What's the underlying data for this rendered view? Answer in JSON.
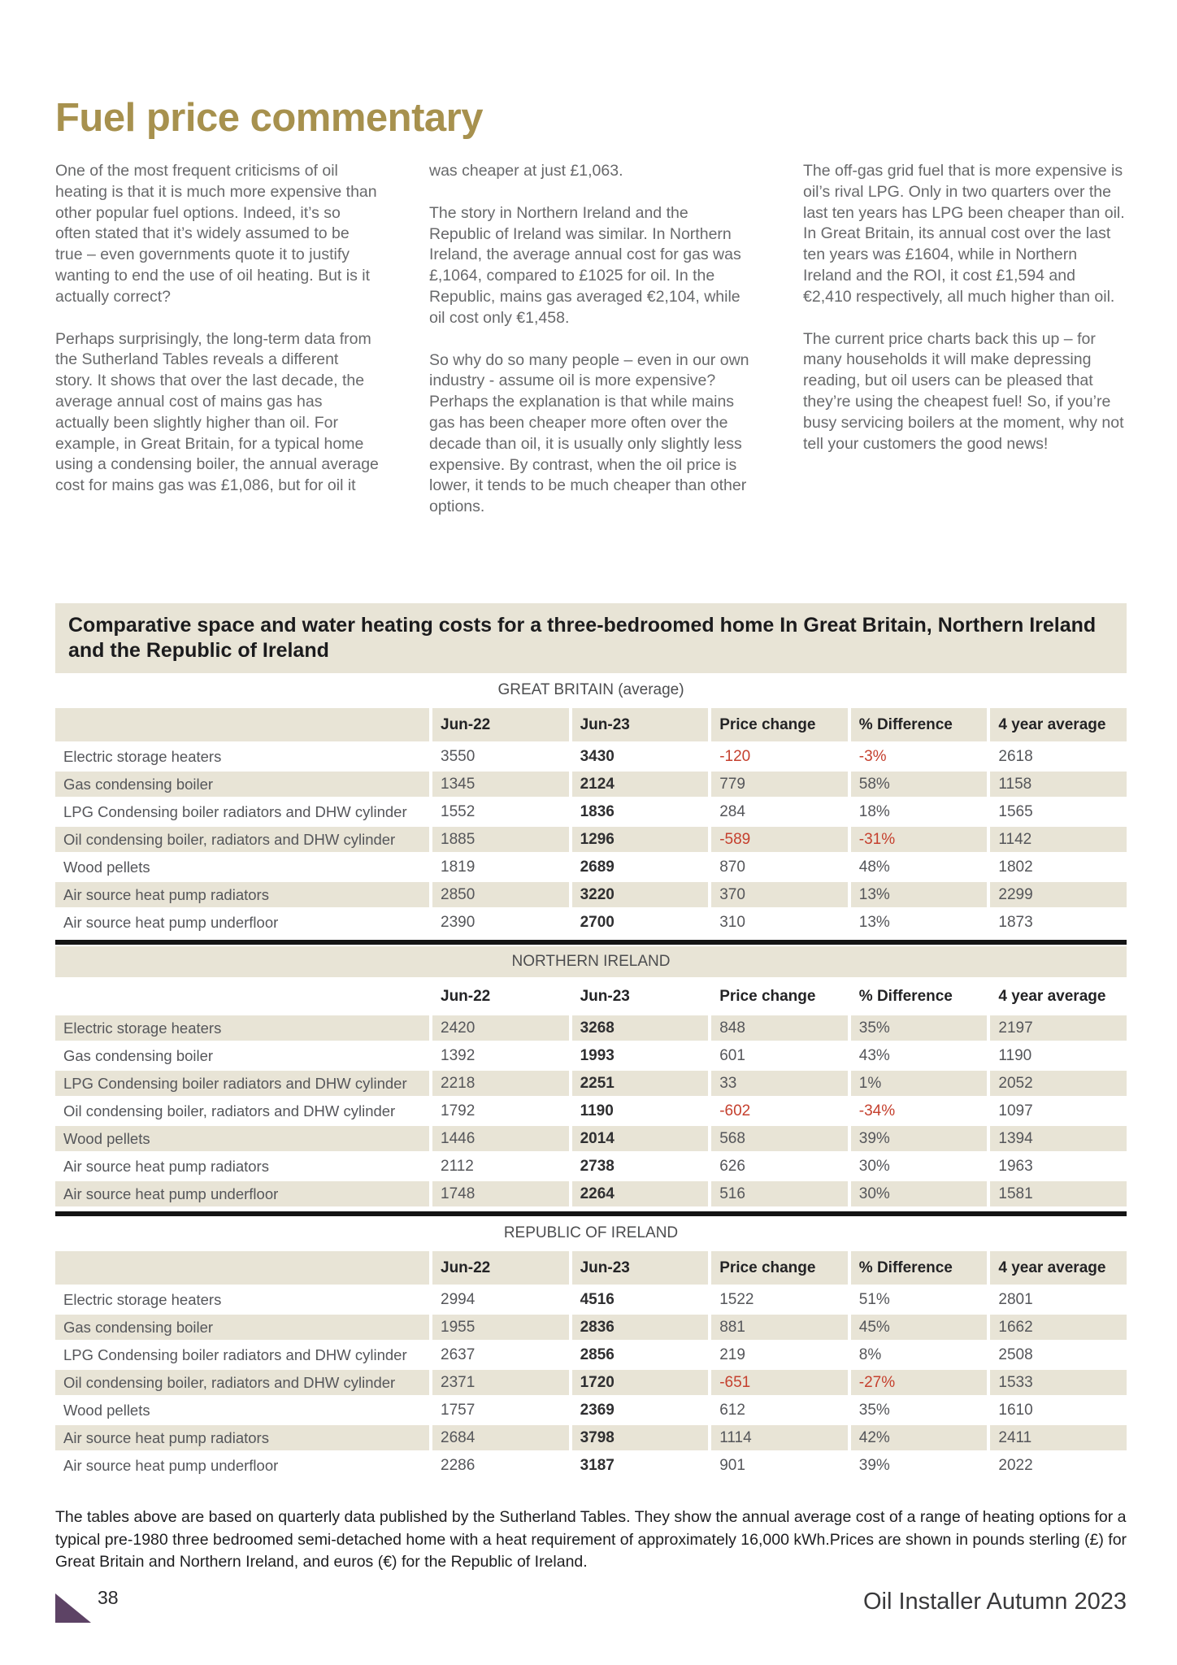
{
  "page": {
    "title": "Fuel price commentary",
    "page_number": "38",
    "footer_right": "Oil Installer Autumn 2023"
  },
  "colors": {
    "accent_gold": "#a7914e",
    "beige": "#e8e4d6",
    "negative_red": "#c5402e",
    "purple_triangle": "#5d4365"
  },
  "article": {
    "columns": [
      {
        "paragraphs": [
          "One of the most frequent criticisms of oil heating is that it is much more expensive than other popular fuel options. Indeed, it’s so often stated that it’s widely assumed to be true – even governments quote it to justify wanting to end the use of oil heating. But is it actually correct?",
          "Perhaps surprisingly, the long-term data from the Sutherland Tables reveals a different story. It shows that over the last decade, the average annual cost of mains gas has actually been slightly higher than oil. For example, in Great Britain, for a typical home using a condensing boiler, the annual average cost for mains gas was £1,086, but for oil it"
        ]
      },
      {
        "paragraphs": [
          "was cheaper at just £1,063.",
          "The story in Northern Ireland and the Republic of Ireland was similar. In Northern Ireland, the average annual cost for gas was £,1064, compared to £1025 for oil. In the Republic, mains gas averaged €2,104, while oil cost only €1,458.",
          "So why do so many people – even in our own industry - assume oil is more expensive? Perhaps the explanation is that while mains gas has been cheaper more often over the decade than oil, it is usually only slightly less expensive. By contrast, when the oil price is lower, it tends to be much cheaper than other options."
        ]
      },
      {
        "paragraphs": [
          "The off-gas grid fuel that is more expensive is oil’s rival LPG. Only in two quarters over the last ten years has LPG been cheaper than oil. In Great Britain, its annual cost over the last ten years was £1604, while in Northern Ireland and the ROI, it cost £1,594 and €2,410 respectively, all much higher than oil.",
          "The current price charts back this up – for many households it will make depressing reading, but oil users can be pleased that they’re using the cheapest fuel! So, if you’re busy servicing boilers at the moment, why not tell your customers the good news!"
        ]
      }
    ]
  },
  "table_block": {
    "title": "Comparative space and water heating costs for a three-bedroomed home In Great Britain, Northern Ireland and the Republic of Ireland",
    "columns": [
      "Jun-22",
      "Jun-23",
      "Price change",
      "% Difference",
      "4 year average"
    ],
    "footnote": "The tables above are based on quarterly data published by the Sutherland Tables. They show the annual average cost of a range of heating options for a typical pre-1980 three bedroomed semi-detached home with a heat requirement of approximately 16,000 kWh.Prices are shown in pounds sterling (£) for Great Britain and Northern Ireland, and euros (€) for the Republic of Ireland.",
    "sections": [
      {
        "label": "GREAT BRITAIN (average)",
        "label_band": "white",
        "header_bg": "beige",
        "stripe_start": "white",
        "divider_above": false,
        "rows": [
          [
            "Electric storage heaters",
            "3550",
            "3430",
            "-120",
            "-3%",
            "2618"
          ],
          [
            "Gas condensing boiler",
            "1345",
            "2124",
            "779",
            "58%",
            "1158"
          ],
          [
            "LPG Condensing boiler radiators and DHW cylinder",
            "1552",
            "1836",
            "284",
            "18%",
            "1565"
          ],
          [
            "Oil condensing boiler, radiators and DHW cylinder",
            "1885",
            "1296",
            "-589",
            "-31%",
            "1142"
          ],
          [
            "Wood pellets",
            "1819",
            "2689",
            "870",
            "48%",
            "1802"
          ],
          [
            "Air source heat pump radiators",
            "2850",
            "3220",
            "370",
            "13%",
            "2299"
          ],
          [
            "Air source heat pump underfloor",
            "2390",
            "2700",
            "310",
            "13%",
            "1873"
          ]
        ]
      },
      {
        "label": "NORTHERN IRELAND",
        "label_band": "beige",
        "header_bg": "white",
        "stripe_start": "beige",
        "divider_above": true,
        "rows": [
          [
            "Electric storage heaters",
            "2420",
            "3268",
            "848",
            "35%",
            "2197"
          ],
          [
            "Gas condensing boiler",
            "1392",
            "1993",
            "601",
            "43%",
            "1190"
          ],
          [
            "LPG Condensing boiler radiators and DHW cylinder",
            "2218",
            "2251",
            "33",
            "1%",
            "2052"
          ],
          [
            "Oil condensing boiler, radiators and DHW cylinder",
            "1792",
            "1190",
            "-602",
            "-34%",
            "1097"
          ],
          [
            "Wood pellets",
            "1446",
            "2014",
            "568",
            "39%",
            "1394"
          ],
          [
            "Air source heat pump radiators",
            "2112",
            "2738",
            "626",
            "30%",
            "1963"
          ],
          [
            "Air source heat pump underfloor",
            "1748",
            "2264",
            "516",
            "30%",
            "1581"
          ]
        ]
      },
      {
        "label": "REPUBLIC OF IRELAND",
        "label_band": "white",
        "header_bg": "beige",
        "stripe_start": "white",
        "divider_above": true,
        "rows": [
          [
            "Electric storage heaters",
            "2994",
            "4516",
            "1522",
            "51%",
            "2801"
          ],
          [
            "Gas condensing boiler",
            "1955",
            "2836",
            "881",
            "45%",
            "1662"
          ],
          [
            "LPG Condensing boiler radiators and DHW cylinder",
            "2637",
            "2856",
            "219",
            "8%",
            "2508"
          ],
          [
            "Oil condensing boiler, radiators and DHW cylinder",
            "2371",
            "1720",
            "-651",
            "-27%",
            "1533"
          ],
          [
            "Wood pellets",
            "1757",
            "2369",
            "612",
            "35%",
            "1610"
          ],
          [
            "Air source heat pump radiators",
            "2684",
            "3798",
            "1114",
            "42%",
            "2411"
          ],
          [
            "Air source heat pump underfloor",
            "2286",
            "3187",
            "901",
            "39%",
            "2022"
          ]
        ]
      }
    ]
  }
}
